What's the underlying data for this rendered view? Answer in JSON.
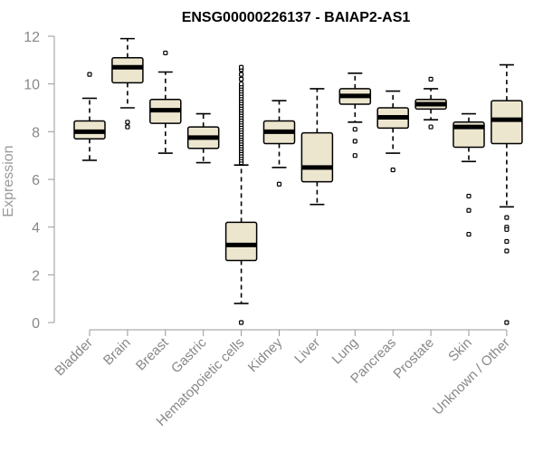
{
  "chart_data": {
    "type": "boxplot",
    "title": "ENSG00000226137 - BAIAP2-AS1",
    "xlabel": "",
    "ylabel": "Expression",
    "ylim": [
      0,
      12
    ],
    "yticks": [
      0,
      2,
      4,
      6,
      8,
      10,
      12
    ],
    "box_color": "#ede6cf",
    "categories": [
      "Bladder",
      "Brain",
      "Breast",
      "Gastric",
      "Hematopoietic cells",
      "Kidney",
      "Liver",
      "Lung",
      "Pancreas",
      "Prostate",
      "Skin",
      "Unknown / Other"
    ],
    "series": [
      {
        "name": "Bladder",
        "whisker_low": 6.8,
        "q1": 7.7,
        "median": 8.0,
        "q3": 8.45,
        "whisker_high": 9.4,
        "outliers": [
          10.4
        ]
      },
      {
        "name": "Brain",
        "whisker_low": 9.0,
        "q1": 10.05,
        "median": 10.7,
        "q3": 11.1,
        "whisker_high": 11.9,
        "outliers": [
          8.4,
          8.2
        ]
      },
      {
        "name": "Breast",
        "whisker_low": 7.1,
        "q1": 8.35,
        "median": 8.9,
        "q3": 9.35,
        "whisker_high": 10.5,
        "outliers": [
          11.3
        ]
      },
      {
        "name": "Gastric",
        "whisker_low": 6.7,
        "q1": 7.3,
        "median": 7.75,
        "q3": 8.2,
        "whisker_high": 8.75,
        "outliers": []
      },
      {
        "name": "Hematopoietic cells",
        "whisker_low": 0.8,
        "q1": 2.6,
        "median": 3.25,
        "q3": 4.2,
        "whisker_high": 6.6,
        "outliers": [
          0.0,
          6.7,
          6.8,
          6.9,
          7.0,
          7.1,
          7.2,
          7.3,
          7.4,
          7.5,
          7.6,
          7.7,
          7.8,
          7.9,
          8.0,
          8.1,
          8.2,
          8.3,
          8.4,
          8.5,
          8.6,
          8.7,
          8.8,
          8.9,
          9.0,
          9.1,
          9.2,
          9.3,
          9.4,
          9.5,
          9.6,
          9.7,
          9.8,
          9.9,
          10.0,
          10.2,
          10.4,
          10.6,
          10.7
        ]
      },
      {
        "name": "Kidney",
        "whisker_low": 6.5,
        "q1": 7.5,
        "median": 8.0,
        "q3": 8.45,
        "whisker_high": 9.3,
        "outliers": [
          5.8
        ]
      },
      {
        "name": "Liver",
        "whisker_low": 4.95,
        "q1": 5.9,
        "median": 6.5,
        "q3": 7.95,
        "whisker_high": 9.8,
        "outliers": []
      },
      {
        "name": "Lung",
        "whisker_low": 8.4,
        "q1": 9.15,
        "median": 9.5,
        "q3": 9.8,
        "whisker_high": 10.45,
        "outliers": [
          8.1,
          7.6,
          7.0
        ]
      },
      {
        "name": "Pancreas",
        "whisker_low": 7.1,
        "q1": 8.15,
        "median": 8.6,
        "q3": 9.0,
        "whisker_high": 9.7,
        "outliers": [
          6.4
        ]
      },
      {
        "name": "Prostate",
        "whisker_low": 8.5,
        "q1": 8.95,
        "median": 9.15,
        "q3": 9.35,
        "whisker_high": 9.8,
        "outliers": [
          10.2,
          8.2
        ]
      },
      {
        "name": "Skin",
        "whisker_low": 6.75,
        "q1": 7.35,
        "median": 8.2,
        "q3": 8.4,
        "whisker_high": 8.75,
        "outliers": [
          5.3,
          4.7,
          3.7
        ]
      },
      {
        "name": "Unknown / Other",
        "whisker_low": 4.85,
        "q1": 7.5,
        "median": 8.5,
        "q3": 9.3,
        "whisker_high": 10.8,
        "outliers": [
          4.4,
          4.0,
          3.9,
          3.4,
          3.0,
          0.0
        ]
      }
    ]
  }
}
